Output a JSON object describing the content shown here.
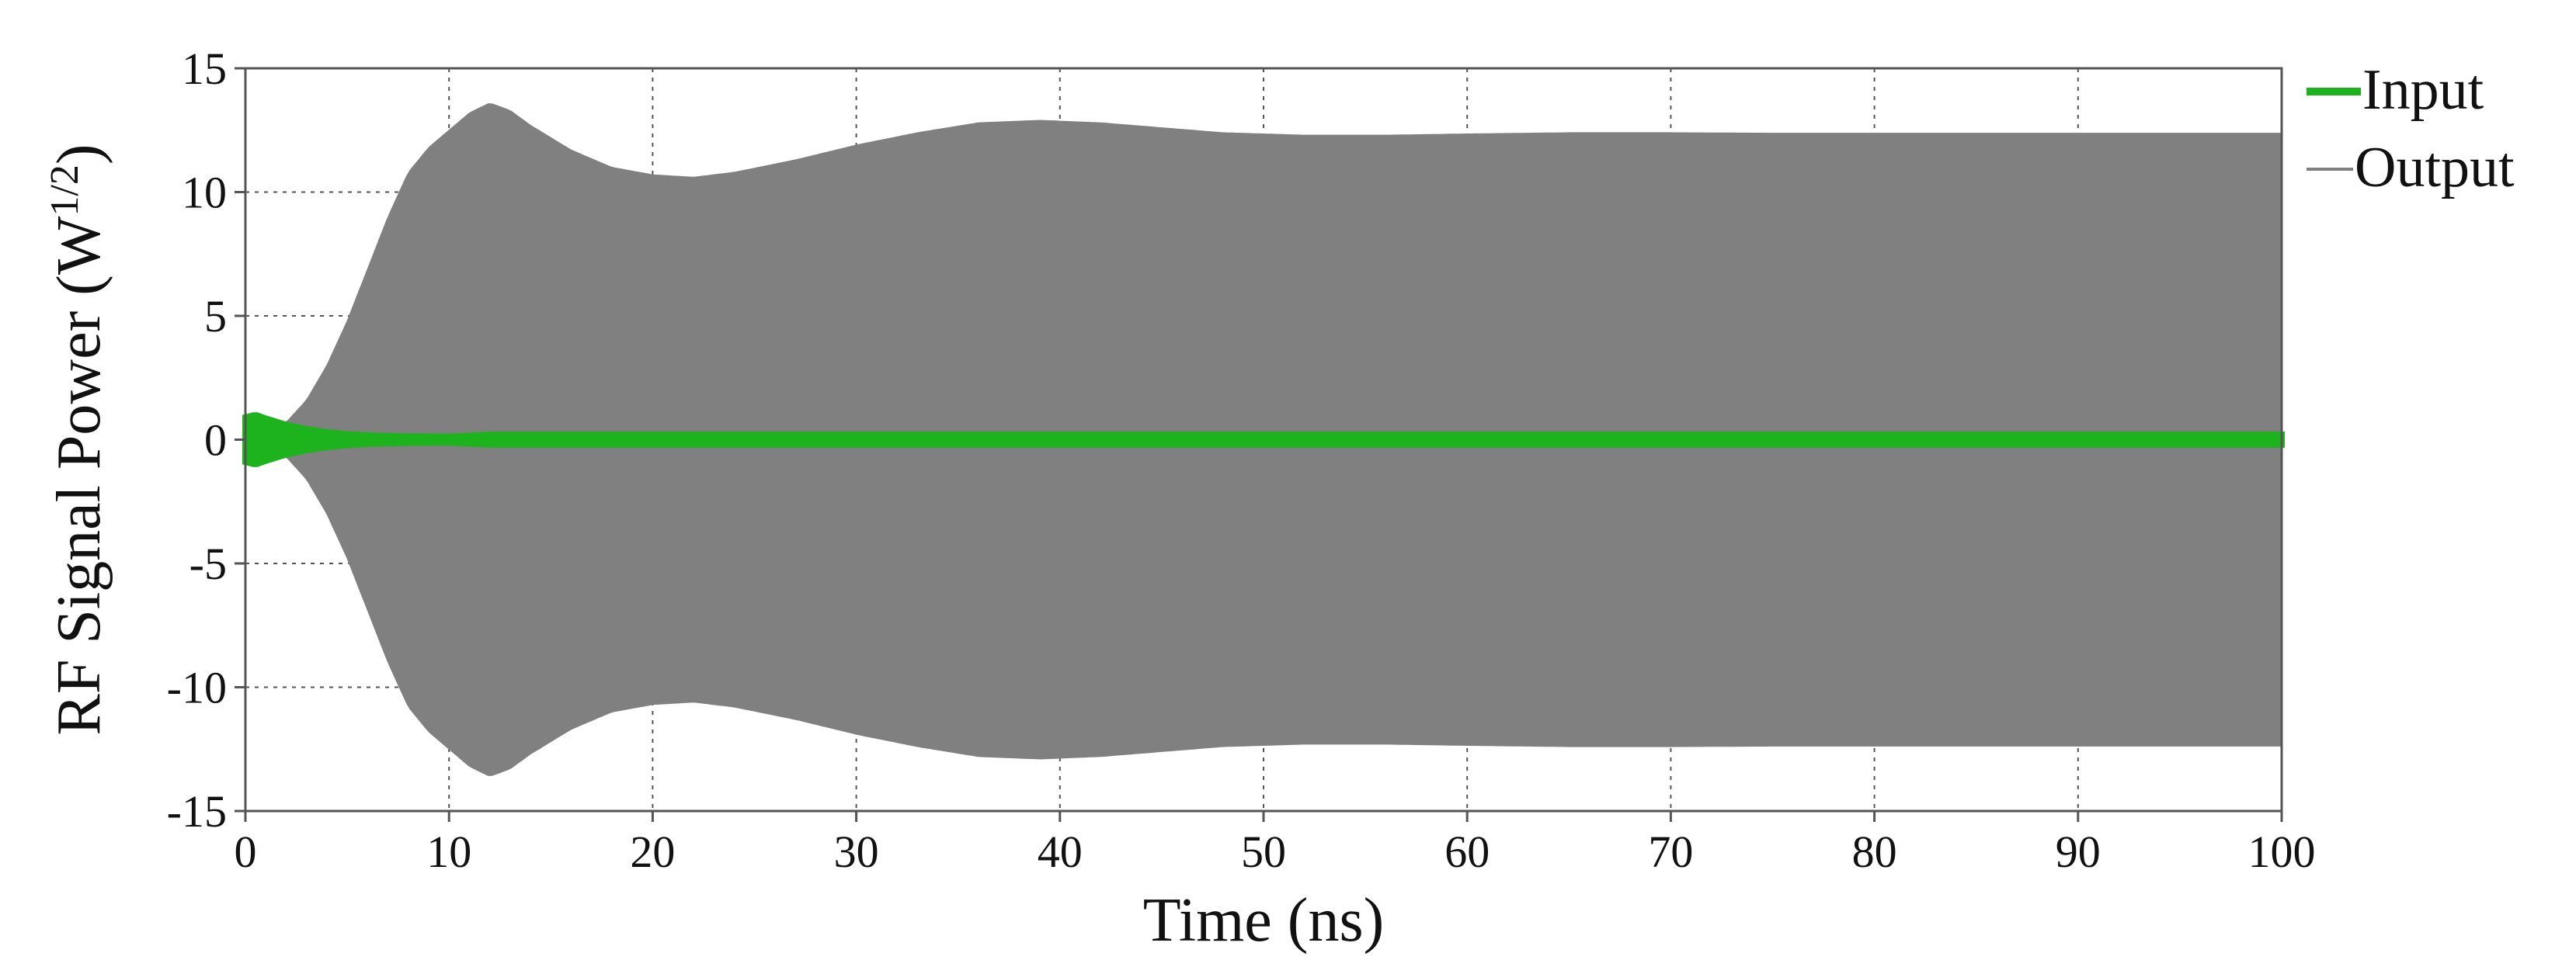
{
  "chart_data": {
    "type": "line",
    "xlabel": "Time (ns)",
    "ylabel": {
      "prefix": "RF Signal Power (W",
      "superscript": "1/2",
      "suffix": ")"
    },
    "xlim": [
      0,
      100
    ],
    "ylim": [
      -15,
      15
    ],
    "xticks": [
      "0",
      "10",
      "20",
      "30",
      "40",
      "50",
      "60",
      "70",
      "80",
      "90",
      "100"
    ],
    "yticks": [
      "15",
      "10",
      "5",
      "0",
      "-5",
      "-10",
      "-15"
    ],
    "grid": "dotted",
    "legend_position": "right",
    "series": [
      {
        "name": "Output",
        "color": "#808080",
        "style": "oscillating envelope (filled, symmetric about 0)",
        "envelope_x": [
          0,
          1,
          2,
          3,
          4,
          5,
          6,
          7,
          8,
          9,
          10,
          11,
          12,
          13,
          14,
          16,
          18,
          20,
          22,
          24,
          27,
          30,
          33,
          36,
          39,
          42,
          45,
          48,
          52,
          56,
          60,
          65,
          70,
          75,
          80,
          85,
          90,
          95,
          100
        ],
        "envelope_amplitude": [
          0,
          0.2,
          0.7,
          1.6,
          3.0,
          4.8,
          6.9,
          9.0,
          10.8,
          11.8,
          12.5,
          13.2,
          13.6,
          13.3,
          12.7,
          11.7,
          11.0,
          10.7,
          10.6,
          10.8,
          11.3,
          11.9,
          12.4,
          12.8,
          12.9,
          12.8,
          12.6,
          12.4,
          12.3,
          12.3,
          12.35,
          12.4,
          12.4,
          12.38,
          12.38,
          12.38,
          12.38,
          12.38,
          12.38
        ]
      },
      {
        "name": "Input",
        "color": "#1db31d",
        "style": "oscillating envelope (filled, symmetric about 0)",
        "envelope_x": [
          0,
          0.5,
          1,
          2,
          3,
          4,
          5,
          6,
          8,
          10,
          12,
          20,
          40,
          60,
          80,
          100
        ],
        "envelope_amplitude": [
          0.9,
          1.0,
          0.85,
          0.6,
          0.42,
          0.3,
          0.22,
          0.17,
          0.13,
          0.12,
          0.2,
          0.2,
          0.2,
          0.2,
          0.2,
          0.2
        ]
      }
    ],
    "legend": [
      {
        "label": "Input",
        "color": "#1db31d"
      },
      {
        "label": "Output",
        "color": "#808080"
      }
    ]
  }
}
